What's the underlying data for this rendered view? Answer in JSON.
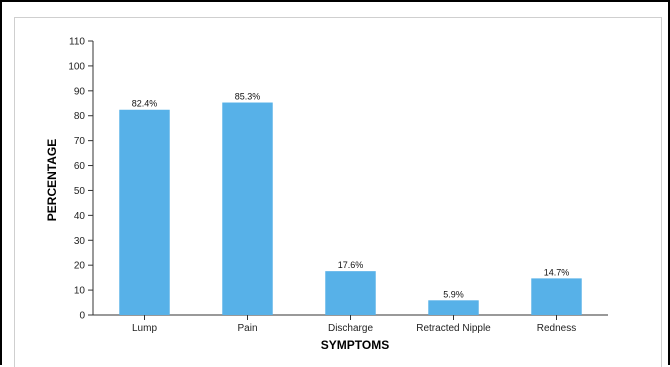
{
  "chart_data": {
    "type": "bar",
    "categories": [
      "Lump",
      "Pain",
      "Discharge",
      "Retracted Nipple",
      "Redness"
    ],
    "values": [
      82.4,
      85.3,
      17.6,
      5.9,
      14.7
    ],
    "data_labels": [
      "82.4%",
      "85.3%",
      "17.6%",
      "5.9%",
      "14.7%"
    ],
    "xlabel": "SYMPTOMS",
    "ylabel": "PERCENTAGE",
    "ylim": [
      0,
      110
    ],
    "yticks": [
      0,
      10,
      20,
      30,
      40,
      50,
      60,
      70,
      80,
      90,
      100,
      110
    ],
    "grid": false,
    "bar_color": "#57b1e8"
  }
}
